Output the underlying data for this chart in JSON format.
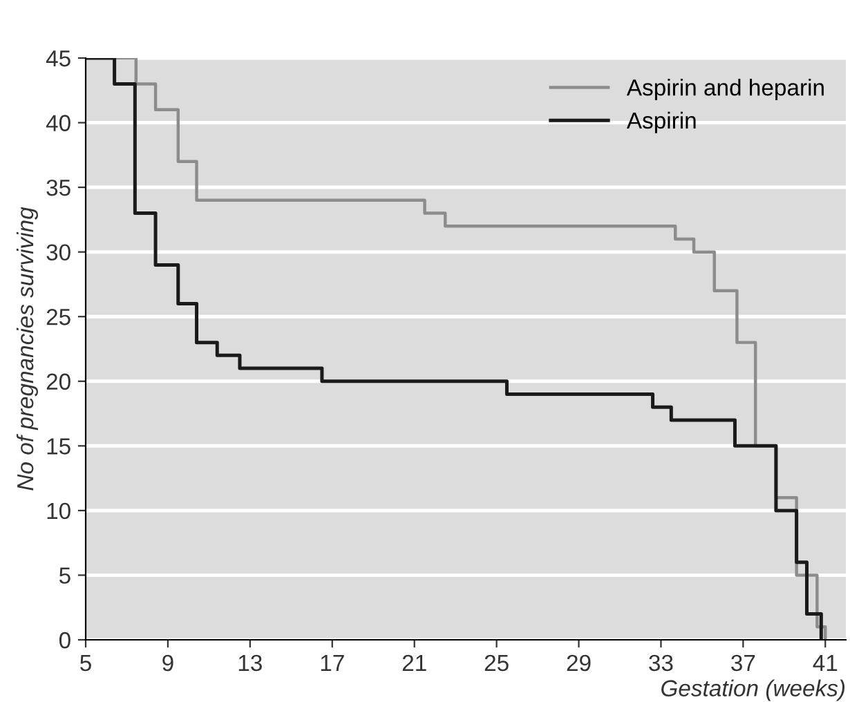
{
  "chart_data": {
    "type": "step",
    "xlabel": "Gestation (weeks)",
    "ylabel": "No of pregnancies surviving",
    "series": [
      {
        "name": "Aspirin and heparin",
        "color": "#8c8c8c",
        "x": [
          5,
          7.45,
          8.4,
          9.5,
          10.4,
          21.5,
          22.5,
          33.7,
          34.6,
          35.6,
          36.7,
          37.6,
          38.6,
          39.6,
          40.6,
          41
        ],
        "values": [
          45,
          43,
          41,
          37,
          34,
          33,
          32,
          31,
          30,
          27,
          23,
          15,
          11,
          5,
          1,
          0
        ]
      },
      {
        "name": "Aspirin",
        "color": "#1a1a1a",
        "x": [
          5,
          6.4,
          7.4,
          8.4,
          9.5,
          10.4,
          11.4,
          12.5,
          16.5,
          25.5,
          32.6,
          33.5,
          36.6,
          38.6,
          39.6,
          40.1,
          40.8
        ],
        "values": [
          45,
          43,
          33,
          29,
          26,
          23,
          22,
          21,
          20,
          19,
          18,
          17,
          15,
          10,
          6,
          2,
          0
        ]
      }
    ],
    "xlim": [
      5,
      42
    ],
    "ylim": [
      0,
      45
    ],
    "xticks": [
      5,
      9,
      13,
      17,
      21,
      25,
      29,
      33,
      37,
      41
    ],
    "yticks": [
      0,
      5,
      10,
      15,
      20,
      25,
      30,
      35,
      40,
      45
    ],
    "grid": "y",
    "legend": "top right"
  }
}
